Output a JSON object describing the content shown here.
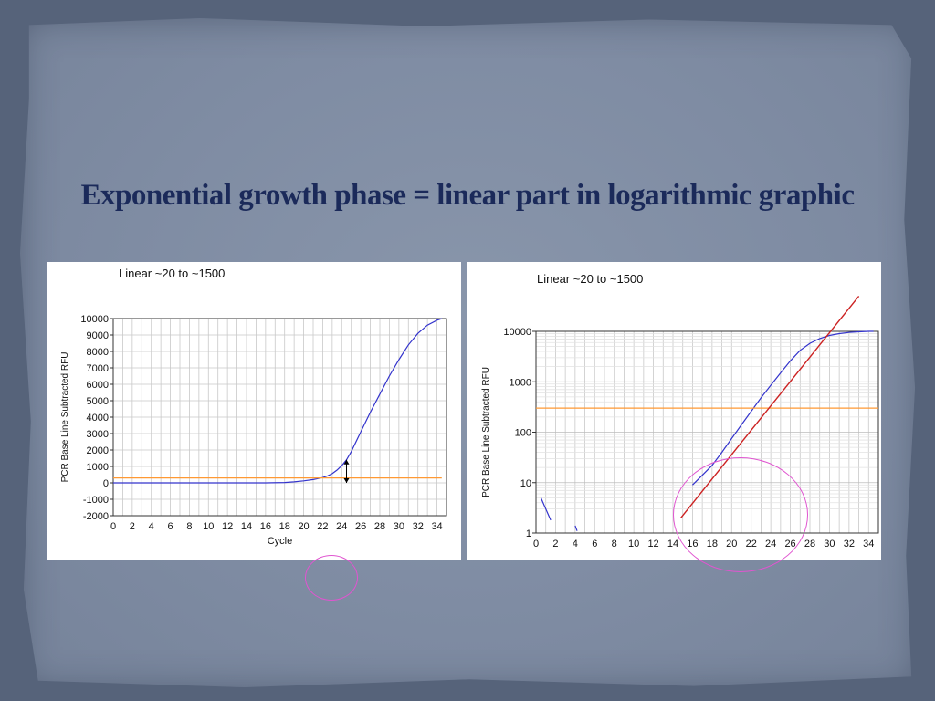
{
  "slide": {
    "title": "Exponential growth phase = linear part in logarithmic graphic"
  },
  "chart_data": [
    {
      "type": "line",
      "title": "Linear ~20 to ~1500",
      "xlabel": "Cycle",
      "ylabel": "PCR Base Line Subtracted RFU",
      "xlim": [
        0,
        35
      ],
      "ylim": [
        -2000,
        10000
      ],
      "yscale": "linear",
      "x_ticks": [
        0,
        2,
        4,
        6,
        8,
        10,
        12,
        14,
        16,
        18,
        20,
        22,
        24,
        26,
        28,
        30,
        32,
        34
      ],
      "x_tick_labels": [
        "0",
        "2",
        "4",
        "6",
        "8",
        "10",
        "12",
        "14",
        "16",
        "18",
        "20",
        "22",
        "24",
        "26",
        "28",
        "30",
        "32",
        "34"
      ],
      "y_ticks": [
        -2000,
        -1000,
        0,
        1000,
        2000,
        3000,
        4000,
        5000,
        6000,
        7000,
        8000,
        9000,
        10000
      ],
      "y_tick_labels": [
        "-2000",
        "-1000",
        "0",
        "1000",
        "2000",
        "3000",
        "4000",
        "5000",
        "6000",
        "7000",
        "8000",
        "9000",
        "10000"
      ],
      "grid": true,
      "series": [
        {
          "color": "#3333cc",
          "x": [
            0,
            4,
            8,
            12,
            16,
            18,
            19,
            20,
            21,
            22,
            22.5,
            23,
            23.5,
            24,
            24.5,
            25,
            26,
            27,
            28,
            29,
            30,
            31,
            32,
            33,
            34,
            34.5
          ],
          "values": [
            0,
            0,
            0,
            0,
            0,
            20,
            60,
            120,
            200,
            320,
            420,
            560,
            780,
            1050,
            1400,
            1900,
            3100,
            4300,
            5400,
            6500,
            7500,
            8400,
            9100,
            9600,
            9900,
            10000
          ]
        },
        {
          "color": "#ff9933",
          "x": [
            0,
            34.5
          ],
          "values": [
            300,
            300
          ]
        }
      ],
      "annotations": [
        {
          "type": "double-arrow",
          "x": 24.5,
          "from": 1400,
          "to": 0
        }
      ]
    },
    {
      "type": "line",
      "title": "Linear ~20 to ~1500",
      "xlabel": "",
      "ylabel": "PCR Base Line Subtracted RFU",
      "xlim": [
        0,
        35
      ],
      "ylim": [
        1,
        10000
      ],
      "yscale": "log",
      "x_ticks": [
        0,
        2,
        4,
        6,
        8,
        10,
        12,
        14,
        16,
        18,
        20,
        22,
        24,
        26,
        28,
        30,
        32,
        34
      ],
      "x_tick_labels": [
        "0",
        "2",
        "4",
        "6",
        "8",
        "10",
        "12",
        "14",
        "16",
        "18",
        "20",
        "22",
        "24",
        "26",
        "28",
        "30",
        "32",
        "34"
      ],
      "y_ticks": [
        1,
        10,
        100,
        1000,
        10000
      ],
      "y_tick_labels": [
        "1",
        "10",
        "100",
        "1000",
        "10000"
      ],
      "grid": true,
      "series": [
        {
          "color": "#3333cc",
          "x": [
            16,
            17,
            18,
            19,
            20,
            21,
            22,
            23,
            24,
            25,
            26,
            27,
            28,
            29,
            30,
            31,
            32,
            33,
            34,
            34.5
          ],
          "values": [
            9,
            14,
            22,
            40,
            75,
            140,
            260,
            480,
            850,
            1500,
            2600,
            4200,
            5800,
            7200,
            8300,
            9000,
            9500,
            9800,
            10000,
            10000
          ]
        },
        {
          "color": "#3333cc",
          "x": [
            0.5,
            1.5
          ],
          "values": [
            5,
            1.8
          ]
        },
        {
          "color": "#3333cc",
          "x": [
            4,
            4.2
          ],
          "values": [
            1.4,
            1.1
          ]
        },
        {
          "color": "#ff9933",
          "x": [
            0,
            35
          ],
          "values": [
            300,
            300
          ]
        },
        {
          "color": "#cc2222",
          "x": [
            14.8,
            33
          ],
          "values": [
            2,
            50000
          ]
        }
      ]
    }
  ]
}
